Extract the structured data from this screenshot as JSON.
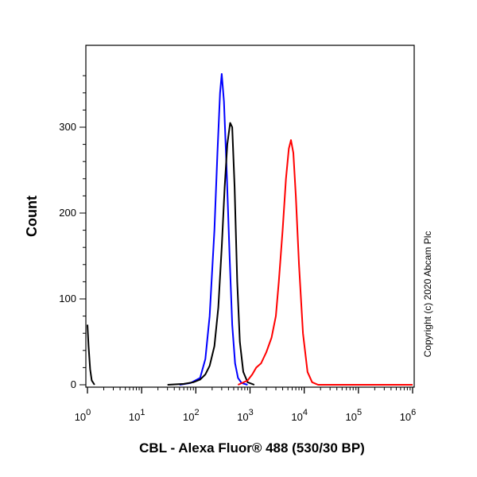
{
  "chart_data": {
    "type": "line",
    "title": "",
    "xlabel": "CBL - Alexa Fluor® 488 (530/30 BP)",
    "ylabel": "Count",
    "x_scale": "log",
    "xlim": [
      1,
      1000000
    ],
    "ylim": [
      0,
      370
    ],
    "x_ticks": [
      {
        "value": 1,
        "base": "10",
        "exp": "0"
      },
      {
        "value": 10,
        "base": "10",
        "exp": "1"
      },
      {
        "value": 100,
        "base": "10",
        "exp": "2"
      },
      {
        "value": 1000,
        "base": "10",
        "exp": "3"
      },
      {
        "value": 10000,
        "base": "10",
        "exp": "4"
      },
      {
        "value": 100000,
        "base": "10",
        "exp": "5"
      },
      {
        "value": 1000000,
        "base": "10",
        "exp": "6"
      }
    ],
    "y_ticks": [
      {
        "value": 0,
        "label": "0"
      },
      {
        "value": 100,
        "label": "100"
      },
      {
        "value": 200,
        "label": "200"
      },
      {
        "value": 300,
        "label": "300"
      }
    ],
    "grid": false,
    "legend": "none",
    "series": [
      {
        "color": "#0000ff",
        "points": [
          [
            50,
            0
          ],
          [
            80,
            2
          ],
          [
            120,
            8
          ],
          [
            150,
            30
          ],
          [
            180,
            80
          ],
          [
            220,
            180
          ],
          [
            250,
            270
          ],
          [
            280,
            340
          ],
          [
            300,
            362
          ],
          [
            330,
            330
          ],
          [
            370,
            250
          ],
          [
            420,
            150
          ],
          [
            470,
            70
          ],
          [
            530,
            25
          ],
          [
            600,
            8
          ],
          [
            700,
            2
          ],
          [
            900,
            0
          ]
        ]
      },
      {
        "color": "#000000",
        "points": [
          [
            30,
            0
          ],
          [
            60,
            1
          ],
          [
            90,
            3
          ],
          [
            120,
            6
          ],
          [
            150,
            12
          ],
          [
            180,
            22
          ],
          [
            220,
            45
          ],
          [
            260,
            90
          ],
          [
            300,
            160
          ],
          [
            340,
            230
          ],
          [
            380,
            280
          ],
          [
            430,
            305
          ],
          [
            470,
            300
          ],
          [
            520,
            230
          ],
          [
            580,
            120
          ],
          [
            650,
            50
          ],
          [
            750,
            15
          ],
          [
            900,
            3
          ],
          [
            1200,
            0
          ]
        ]
      },
      {
        "color": "#ff0000",
        "points": [
          [
            600,
            0
          ],
          [
            900,
            5
          ],
          [
            1100,
            12
          ],
          [
            1300,
            20
          ],
          [
            1600,
            25
          ],
          [
            2000,
            38
          ],
          [
            2500,
            55
          ],
          [
            3000,
            80
          ],
          [
            3400,
            120
          ],
          [
            4000,
            180
          ],
          [
            4600,
            240
          ],
          [
            5200,
            275
          ],
          [
            5700,
            285
          ],
          [
            6300,
            270
          ],
          [
            7000,
            220
          ],
          [
            8000,
            140
          ],
          [
            9500,
            60
          ],
          [
            11500,
            15
          ],
          [
            14000,
            3
          ],
          [
            18000,
            0
          ],
          [
            1000000,
            0
          ]
        ]
      },
      {
        "color": "#000000",
        "points": [
          [
            1,
            70
          ],
          [
            1.05,
            45
          ],
          [
            1.12,
            18
          ],
          [
            1.2,
            5
          ],
          [
            1.35,
            0
          ]
        ]
      }
    ]
  },
  "copyright": "Copyright (c) 2020 Abcam Plc",
  "colors": {
    "axis": "#000000",
    "background": "#ffffff"
  }
}
